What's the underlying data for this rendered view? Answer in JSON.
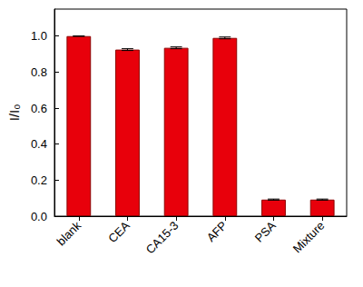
{
  "chart_data": {
    "type": "bar",
    "y_label": "I/I₀",
    "categories": [
      "blank",
      "CEA",
      "CA15-3",
      "AFP",
      "PSA",
      "Mixture"
    ],
    "values": [
      1.0,
      0.925,
      0.935,
      0.99,
      0.092,
      0.092
    ],
    "errors": [
      0.0,
      0.005,
      0.005,
      0.005,
      0.003,
      0.003
    ],
    "color": "#e8000b",
    "ylim": [
      0,
      1.15
    ],
    "yticks": [
      {
        "value": 0,
        "label": "0.0"
      },
      0.2,
      0.4,
      0.6,
      0.8,
      {
        "value": 1,
        "label": "1.0"
      }
    ],
    "grid": false
  }
}
